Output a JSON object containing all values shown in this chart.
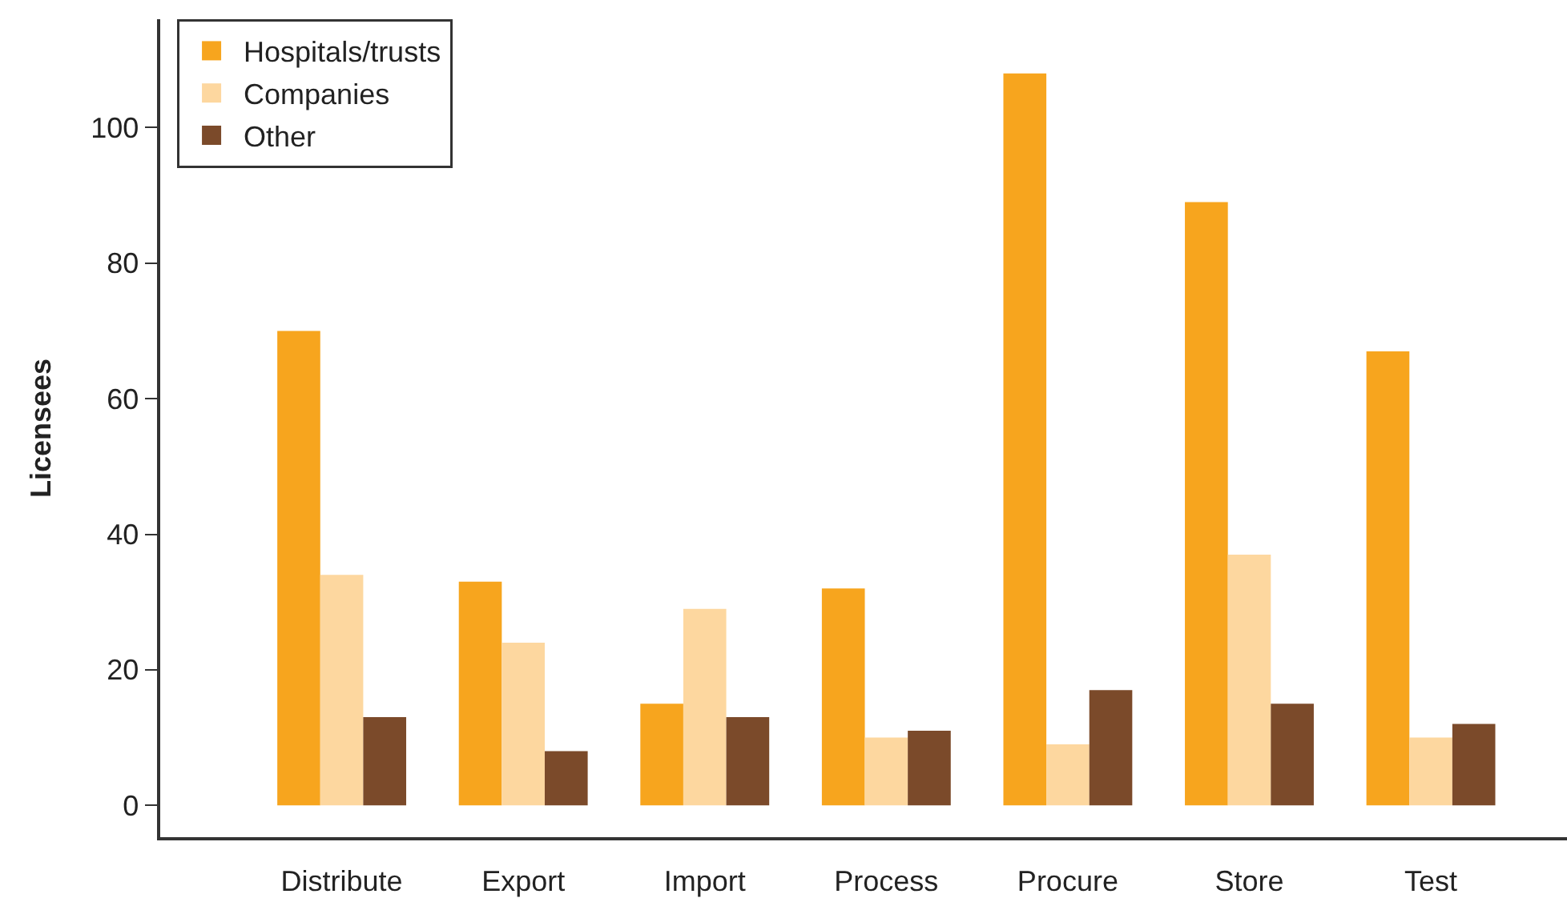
{
  "chart_data": {
    "type": "bar",
    "ylabel": "Licensees",
    "categories": [
      "Distribute",
      "Export",
      "Import",
      "Process",
      "Procure",
      "Store",
      "Test"
    ],
    "series": [
      {
        "name": "Hospitals/trusts",
        "color": "#f7a51e",
        "values": [
          70,
          33,
          15,
          32,
          108,
          89,
          67
        ]
      },
      {
        "name": "Companies",
        "color": "#fdd79f",
        "values": [
          34,
          24,
          29,
          10,
          9,
          37,
          10
        ]
      },
      {
        "name": "Other",
        "color": "#7b4a2a",
        "values": [
          13,
          8,
          13,
          11,
          17,
          15,
          12
        ]
      }
    ],
    "ylim": [
      -4.7,
      116
    ],
    "yticks": [
      0,
      20,
      40,
      60,
      80,
      100
    ],
    "grid": false,
    "legend": "top left"
  }
}
